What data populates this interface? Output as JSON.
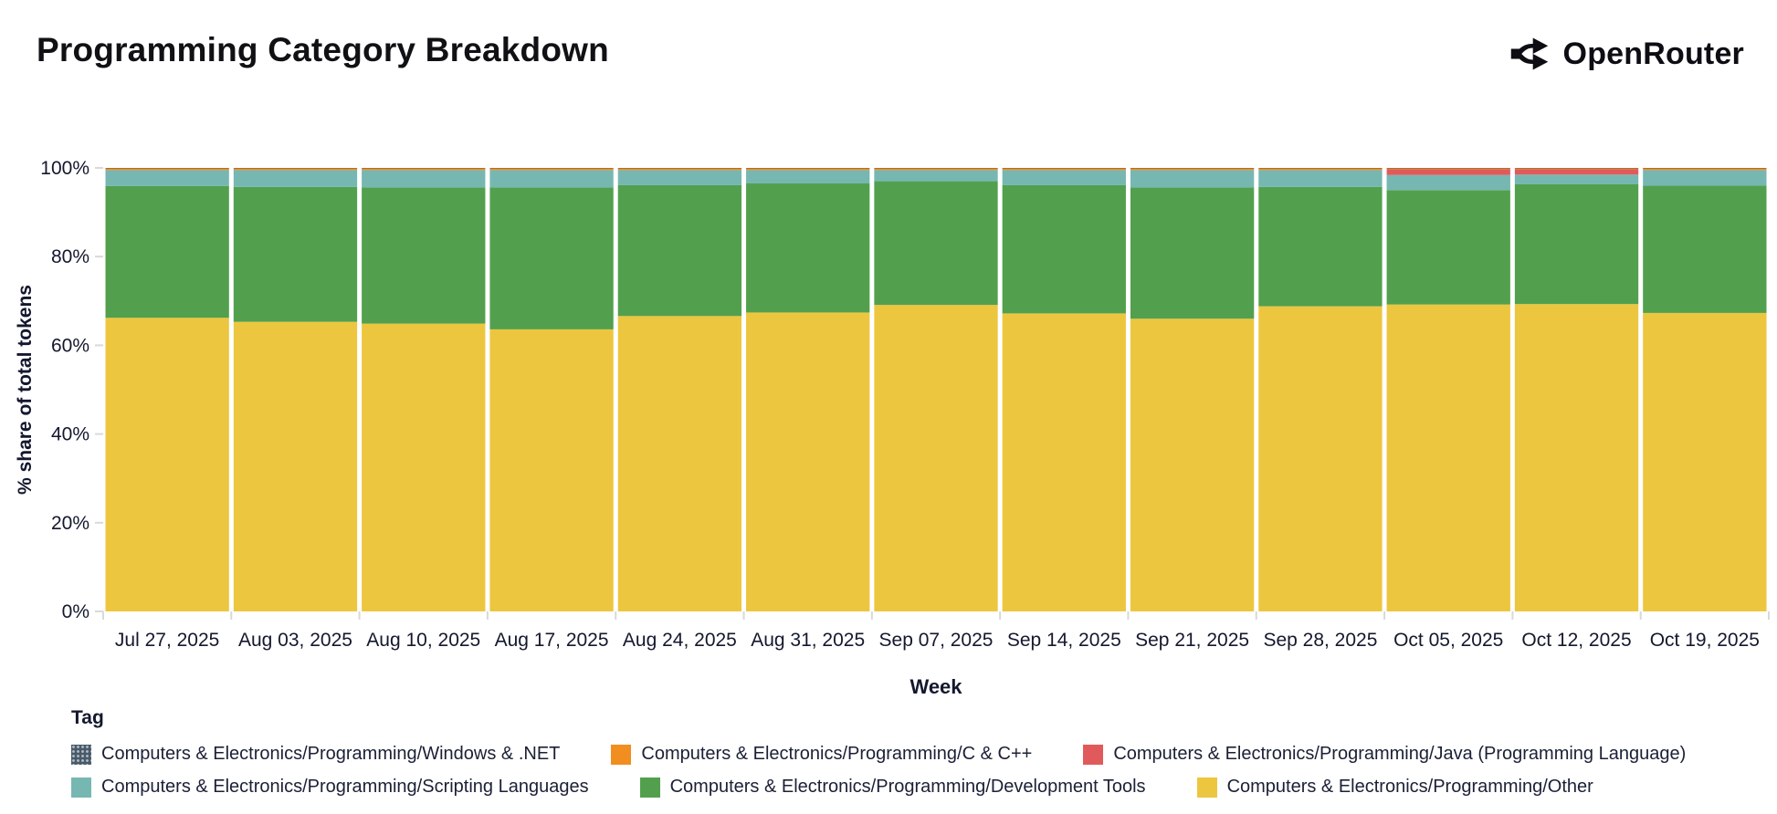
{
  "header": {
    "title": "Programming Category Breakdown",
    "brand": "OpenRouter"
  },
  "chart_data": {
    "type": "bar",
    "stacked": true,
    "title": "Programming Category Breakdown",
    "xlabel": "Week",
    "ylabel": "% share of total tokens",
    "ylim": [
      0,
      100
    ],
    "yticks": [
      0,
      20,
      40,
      60,
      80,
      100
    ],
    "ytick_labels": [
      "0%",
      "20%",
      "40%",
      "60%",
      "80%",
      "100%"
    ],
    "grid": false,
    "legend_position": "bottom",
    "legend_title": "Tag",
    "categories": [
      "Jul 27, 2025",
      "Aug 03, 2025",
      "Aug 10, 2025",
      "Aug 17, 2025",
      "Aug 24, 2025",
      "Aug 31, 2025",
      "Sep 07, 2025",
      "Sep 14, 2025",
      "Sep 21, 2025",
      "Sep 28, 2025",
      "Oct 05, 2025",
      "Oct 12, 2025",
      "Oct 19, 2025"
    ],
    "series": [
      {
        "name": "Computers & Electronics/Programming/Other",
        "color": "#edc63f",
        "values": [
          66.2,
          65.3,
          64.9,
          63.6,
          66.6,
          67.4,
          69.1,
          67.2,
          66.0,
          68.8,
          69.2,
          69.3,
          67.3
        ]
      },
      {
        "name": "Computers & Electronics/Programming/Development Tools",
        "color": "#52a04e",
        "values": [
          29.7,
          30.4,
          30.7,
          32.0,
          29.5,
          29.1,
          27.9,
          28.9,
          29.6,
          26.9,
          25.8,
          27.0,
          28.7
        ]
      },
      {
        "name": "Computers & Electronics/Programming/Scripting Languages",
        "color": "#77b7b2",
        "values": [
          3.6,
          3.8,
          3.9,
          3.9,
          3.4,
          3.0,
          2.5,
          3.4,
          3.9,
          3.8,
          3.4,
          2.2,
          3.5
        ]
      },
      {
        "name": "Computers & Electronics/Programming/Java (Programming Language)",
        "color": "#e15a5b",
        "values": [
          0,
          0,
          0,
          0,
          0,
          0,
          0,
          0,
          0,
          0,
          1.3,
          1.2,
          0
        ]
      },
      {
        "name": "Computers & Electronics/Programming/C & C++",
        "color": "#f28d20",
        "values": [
          0.4,
          0.4,
          0.4,
          0.4,
          0.4,
          0.4,
          0.4,
          0.4,
          0.4,
          0.4,
          0.2,
          0.2,
          0.4
        ]
      },
      {
        "name": "Computers & Electronics/Programming/Windows & .NET",
        "color": "#4a5a68",
        "values": [
          0.1,
          0.1,
          0.1,
          0.1,
          0.1,
          0.1,
          0.1,
          0.1,
          0.1,
          0.1,
          0.1,
          0.1,
          0.1
        ]
      }
    ]
  },
  "legend": {
    "title": "Tag",
    "items": [
      {
        "label": "Computers & Electronics/Programming/Windows & .NET",
        "color": "#4a5a68",
        "pattern": true
      },
      {
        "label": "Computers & Electronics/Programming/C & C++",
        "color": "#f28d20",
        "pattern": false
      },
      {
        "label": "Computers & Electronics/Programming/Java (Programming Language)",
        "color": "#e15a5b",
        "pattern": false
      },
      {
        "label": "Computers & Electronics/Programming/Scripting Languages",
        "color": "#77b7b2",
        "pattern": false
      },
      {
        "label": "Computers & Electronics/Programming/Development Tools",
        "color": "#52a04e",
        "pattern": false
      },
      {
        "label": "Computers & Electronics/Programming/Other",
        "color": "#edc63f",
        "pattern": false
      }
    ]
  },
  "style": {
    "axis_text_color": "#14182e",
    "tick_line_color": "#d9d9d9"
  }
}
